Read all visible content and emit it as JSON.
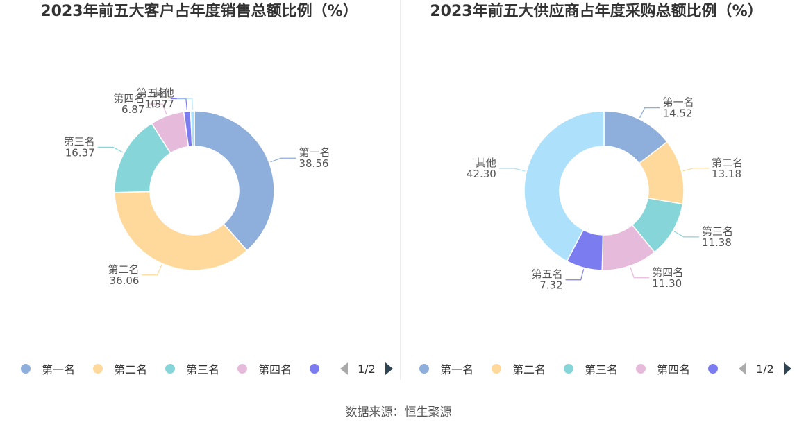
{
  "chart_data": [
    {
      "type": "pie",
      "title": "2023年前五大客户占年度销售总额比例（%）",
      "categories": [
        "第一名",
        "第二名",
        "第三名",
        "第四名",
        "第五名",
        "其他"
      ],
      "values_display": [
        "38.56",
        "36.06",
        "16.37",
        "6.87",
        "1.37",
        "0.77"
      ],
      "values": [
        38.56,
        36.06,
        16.37,
        6.87,
        1.37,
        0.77
      ],
      "colors": [
        "#8eaedb",
        "#fed99b",
        "#86d5d9",
        "#e6badb",
        "#7b7cf0",
        "#ade0fb"
      ],
      "legend_position": "bottom",
      "legend_page": "1/2"
    },
    {
      "type": "pie",
      "title": "2023年前五大供应商占年度采购总额比例（%）",
      "categories": [
        "第一名",
        "第二名",
        "第三名",
        "第四名",
        "第五名",
        "其他"
      ],
      "values_display": [
        "14.52",
        "13.18",
        "11.38",
        "11.30",
        "7.32",
        "42.30"
      ],
      "values": [
        14.52,
        13.18,
        11.38,
        11.3,
        7.32,
        42.3
      ],
      "colors": [
        "#8eaedb",
        "#fed99b",
        "#86d5d9",
        "#e6badb",
        "#7b7cf0",
        "#ade0fb"
      ],
      "legend_position": "bottom",
      "legend_page": "1/2"
    }
  ],
  "legend_items": [
    "第一名",
    "第二名",
    "第三名",
    "第四名"
  ],
  "source": "数据来源：恒生聚源"
}
